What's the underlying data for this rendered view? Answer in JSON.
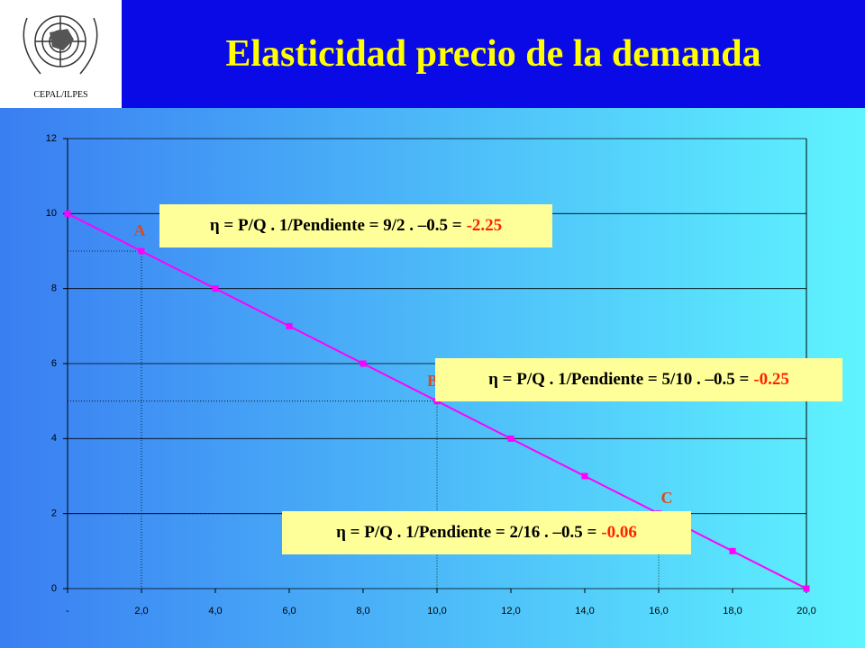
{
  "header": {
    "org": "CEPAL/ILPES",
    "title": "Elasticidad precio de la demanda"
  },
  "chart_data": {
    "type": "line",
    "x": [
      0,
      2,
      4,
      6,
      8,
      10,
      12,
      14,
      16,
      18,
      20
    ],
    "values": [
      10,
      9,
      8,
      7,
      6,
      5,
      4,
      3,
      2,
      1,
      0
    ],
    "color": "#ff00ff",
    "xlim": [
      0,
      20
    ],
    "ylim": [
      0,
      12
    ],
    "xticks": [
      {
        "value": 0,
        "label": "-"
      },
      {
        "value": 2,
        "label": "2,0"
      },
      {
        "value": 4,
        "label": "4,0"
      },
      {
        "value": 6,
        "label": "6,0"
      },
      {
        "value": 8,
        "label": "8,0"
      },
      {
        "value": 10,
        "label": "10,0"
      },
      {
        "value": 12,
        "label": "12,0"
      },
      {
        "value": 14,
        "label": "14,0"
      },
      {
        "value": 16,
        "label": "16,0"
      },
      {
        "value": 18,
        "label": "18,0"
      },
      {
        "value": 20,
        "label": "20,0"
      }
    ],
    "yticks": [
      0,
      2,
      4,
      6,
      8,
      10,
      12
    ],
    "grid": true,
    "annotations": [
      {
        "label": "A",
        "x": 2,
        "y": 9,
        "formula": "η = P/Q . 1/Pendiente = 9/2 . –0.5 =",
        "result": "-2.25"
      },
      {
        "label": "B",
        "x": 10,
        "y": 5,
        "formula": "η = P/Q . 1/Pendiente = 5/10 . –0.5 =",
        "result": "-0.25"
      },
      {
        "label": "C",
        "x": 16,
        "y": 2,
        "formula": "η = P/Q . 1/Pendiente = 2/16 . –0.5 =",
        "result": "-0.06"
      }
    ]
  }
}
